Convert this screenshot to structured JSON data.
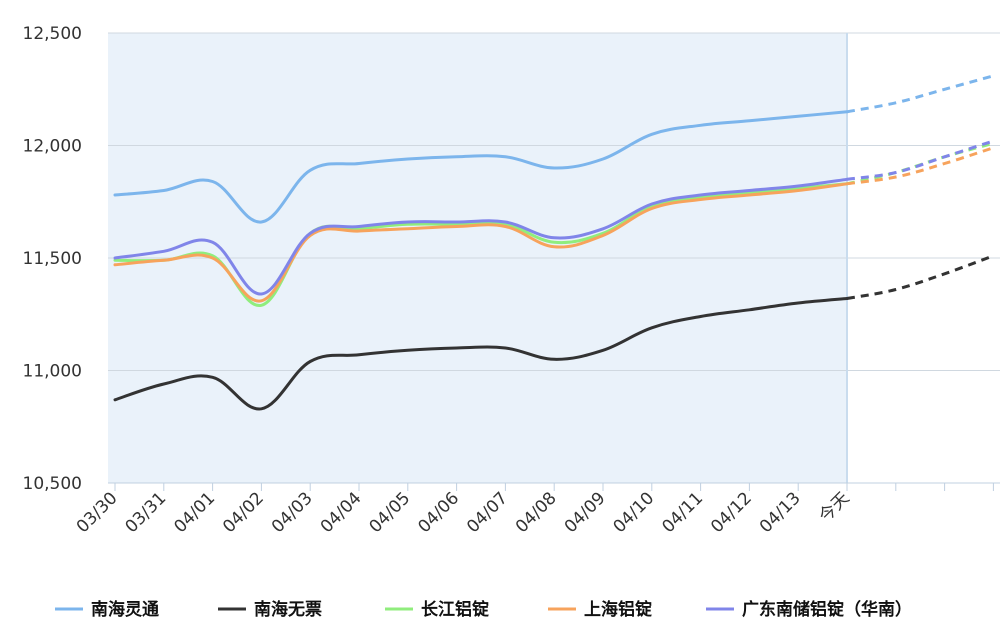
{
  "chart_data": {
    "type": "line",
    "categories": [
      "03/30",
      "03/31",
      "04/01",
      "04/02",
      "04/03",
      "04/04",
      "04/05",
      "04/06",
      "04/07",
      "04/08",
      "04/09",
      "04/10",
      "04/11",
      "04/12",
      "04/13",
      "今天",
      "",
      "",
      ""
    ],
    "ylim": [
      10500,
      12500
    ],
    "yticks": [
      "12,500",
      "12,000",
      "11,500",
      "11,000",
      "10,500"
    ],
    "ytick_values": [
      12500,
      12000,
      11500,
      11000,
      10500
    ],
    "today_index": 15,
    "grid": true,
    "legend_position": "bottom",
    "series": [
      {
        "name": "南海灵通",
        "color": "#7cb5ec",
        "values": [
          11780,
          11800,
          11840,
          11660,
          11890,
          11920,
          11940,
          11950,
          11950,
          11900,
          11940,
          12050,
          12090,
          12110,
          12130,
          12150,
          12190,
          12250,
          12310
        ]
      },
      {
        "name": "南海无票",
        "color": "#333333",
        "values": [
          10870,
          10940,
          10970,
          10830,
          11040,
          11070,
          11090,
          11100,
          11100,
          11050,
          11090,
          11190,
          11240,
          11270,
          11300,
          11320,
          11360,
          11430,
          11510
        ]
      },
      {
        "name": "长江铝锭",
        "color": "#90ed7d",
        "values": [
          11490,
          11490,
          11510,
          11290,
          11610,
          11630,
          11650,
          11650,
          11650,
          11570,
          11610,
          11730,
          11770,
          11790,
          11810,
          11830,
          11880,
          11950,
          12010
        ]
      },
      {
        "name": "上海铝锭",
        "color": "#f7a35c",
        "values": [
          11470,
          11490,
          11500,
          11310,
          11600,
          11620,
          11630,
          11640,
          11640,
          11550,
          11600,
          11720,
          11760,
          11780,
          11800,
          11830,
          11860,
          11920,
          11990
        ]
      },
      {
        "name": "广东南储铝锭（华南）",
        "color": "#8085e9",
        "values": [
          11500,
          11530,
          11570,
          11340,
          11610,
          11640,
          11660,
          11660,
          11660,
          11590,
          11630,
          11740,
          11780,
          11800,
          11820,
          11850,
          11880,
          11950,
          12020
        ]
      }
    ]
  }
}
